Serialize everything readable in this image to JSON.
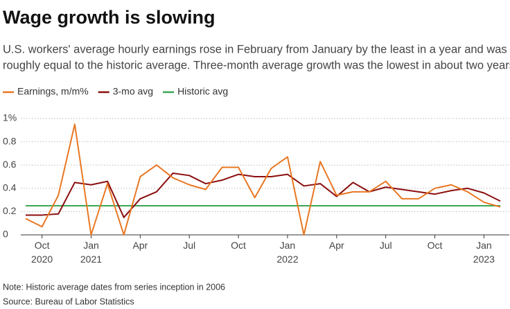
{
  "chart_data": {
    "type": "line",
    "title": "Wage growth is slowing",
    "subtitle": [
      "U.S. workers' average hourly earnings rose in February from January by the least in a year and was",
      "roughly equal to the historic average. Three-month average growth was the lowest in about two years."
    ],
    "notes": [
      "Note: Historic average dates from series inception in 2006",
      "Source: Bureau of Labor Statistics"
    ],
    "categories": [
      null,
      "Oct 2020",
      null,
      null,
      "Jan 2021",
      null,
      null,
      "Apr",
      null,
      null,
      "Jul",
      null,
      null,
      "Oct",
      null,
      null,
      "Jan 2022",
      null,
      null,
      "Apr",
      null,
      null,
      "Jul",
      null,
      null,
      "Oct",
      null,
      null,
      "Jan 2023",
      null
    ],
    "series": [
      {
        "name": "Earnings, m/m%",
        "color": "#e87722",
        "values": [
          0.14,
          0.07,
          0.34,
          0.95,
          0,
          0.44,
          0,
          0.5,
          0.6,
          0.49,
          0.43,
          0.39,
          0.58,
          0.58,
          0.32,
          0.57,
          0.67,
          0,
          0.63,
          0.34,
          0.37,
          0.37,
          0.46,
          0.31,
          0.31,
          0.4,
          0.43,
          0.37,
          0.28,
          0.24
        ]
      },
      {
        "name": "3-mo avg",
        "color": "#8b0e0e",
        "values": [
          0.17,
          0.17,
          0.18,
          0.45,
          0.43,
          0.46,
          0.15,
          0.31,
          0.37,
          0.53,
          0.51,
          0.44,
          0.47,
          0.52,
          0.5,
          0.5,
          0.52,
          0.42,
          0.44,
          0.33,
          0.45,
          0.37,
          0.41,
          0.39,
          0.37,
          0.35,
          0.38,
          0.4,
          0.36,
          0.29
        ]
      },
      {
        "name": "Historic avg",
        "color": "#3aa655",
        "values": [
          0.25,
          0.25,
          0.25,
          0.25,
          0.25,
          0.25,
          0.25,
          0.25,
          0.25,
          0.25,
          0.25,
          0.25,
          0.25,
          0.25,
          0.25,
          0.25,
          0.25,
          0.25,
          0.25,
          0.25,
          0.25,
          0.25,
          0.25,
          0.25,
          0.25,
          0.25,
          0.25,
          0.25,
          0.25,
          0.25
        ]
      }
    ],
    "ylim": [
      0,
      1
    ],
    "yticks": [
      0,
      0.2,
      0.4,
      0.6,
      0.8,
      {
        "value": 1,
        "label": "1%"
      }
    ],
    "grid": true
  }
}
